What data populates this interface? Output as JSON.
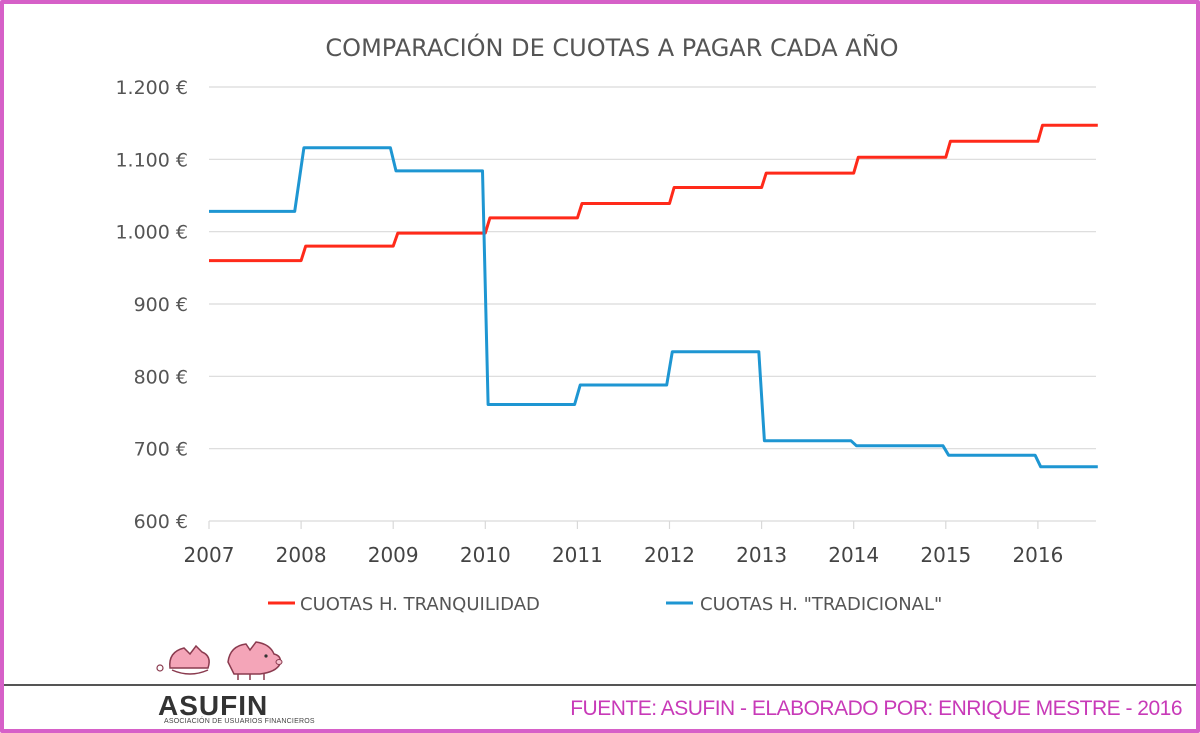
{
  "chart_data": {
    "type": "line",
    "title": "COMPARACIÓN DE CUOTAS A PAGAR CADA AÑO",
    "xlabel": "",
    "ylabel": "",
    "x_ticks": [
      "2007",
      "2008",
      "2009",
      "2010",
      "2011",
      "2012",
      "2013",
      "2014",
      "2015",
      "2016"
    ],
    "y_ticks": [
      "600 €",
      "700 €",
      "800 €",
      "900 €",
      "1.000 €",
      "1.100 €",
      "1.200 €"
    ],
    "ylim": [
      600,
      1200
    ],
    "xlim": [
      2007,
      2016.65
    ],
    "grid": true,
    "legend_position": "bottom",
    "series": [
      {
        "name": "CUOTAS H. TRANQUILIDAD",
        "color": "#ff2a1a",
        "x": [
          2007,
          2008,
          2008.05,
          2009,
          2009.05,
          2010,
          2010.05,
          2011,
          2011.05,
          2012,
          2012.05,
          2013,
          2013.05,
          2014,
          2014.05,
          2015,
          2015.05,
          2016,
          2016.05,
          2016.65
        ],
        "values": [
          960,
          960,
          980,
          980,
          998,
          998,
          1019,
          1019,
          1039,
          1039,
          1061,
          1061,
          1081,
          1081,
          1103,
          1103,
          1125,
          1125,
          1147,
          1147
        ]
      },
      {
        "name": "CUOTAS H. \"TRADICIONAL\"",
        "color": "#1e96d2",
        "x": [
          2007,
          2007.93,
          2008.03,
          2008.97,
          2009.03,
          2009.97,
          2010.03,
          2010.97,
          2011.03,
          2011.97,
          2012.03,
          2012.97,
          2013.03,
          2013.97,
          2014.03,
          2014.97,
          2015.03,
          2015.97,
          2016.03,
          2016.65
        ],
        "values": [
          1028,
          1028,
          1116,
          1116,
          1084,
          1084,
          761,
          761,
          788,
          788,
          834,
          834,
          711,
          711,
          704,
          704,
          691,
          691,
          675,
          675
        ]
      }
    ]
  },
  "footer": {
    "brand": "ASUFIN",
    "brand_sub": "ASOCIACIÓN DE USUARIOS FINANCIEROS",
    "source": "FUENTE: ASUFIN - ELABORADO POR: ENRIQUE MESTRE - 2016"
  }
}
